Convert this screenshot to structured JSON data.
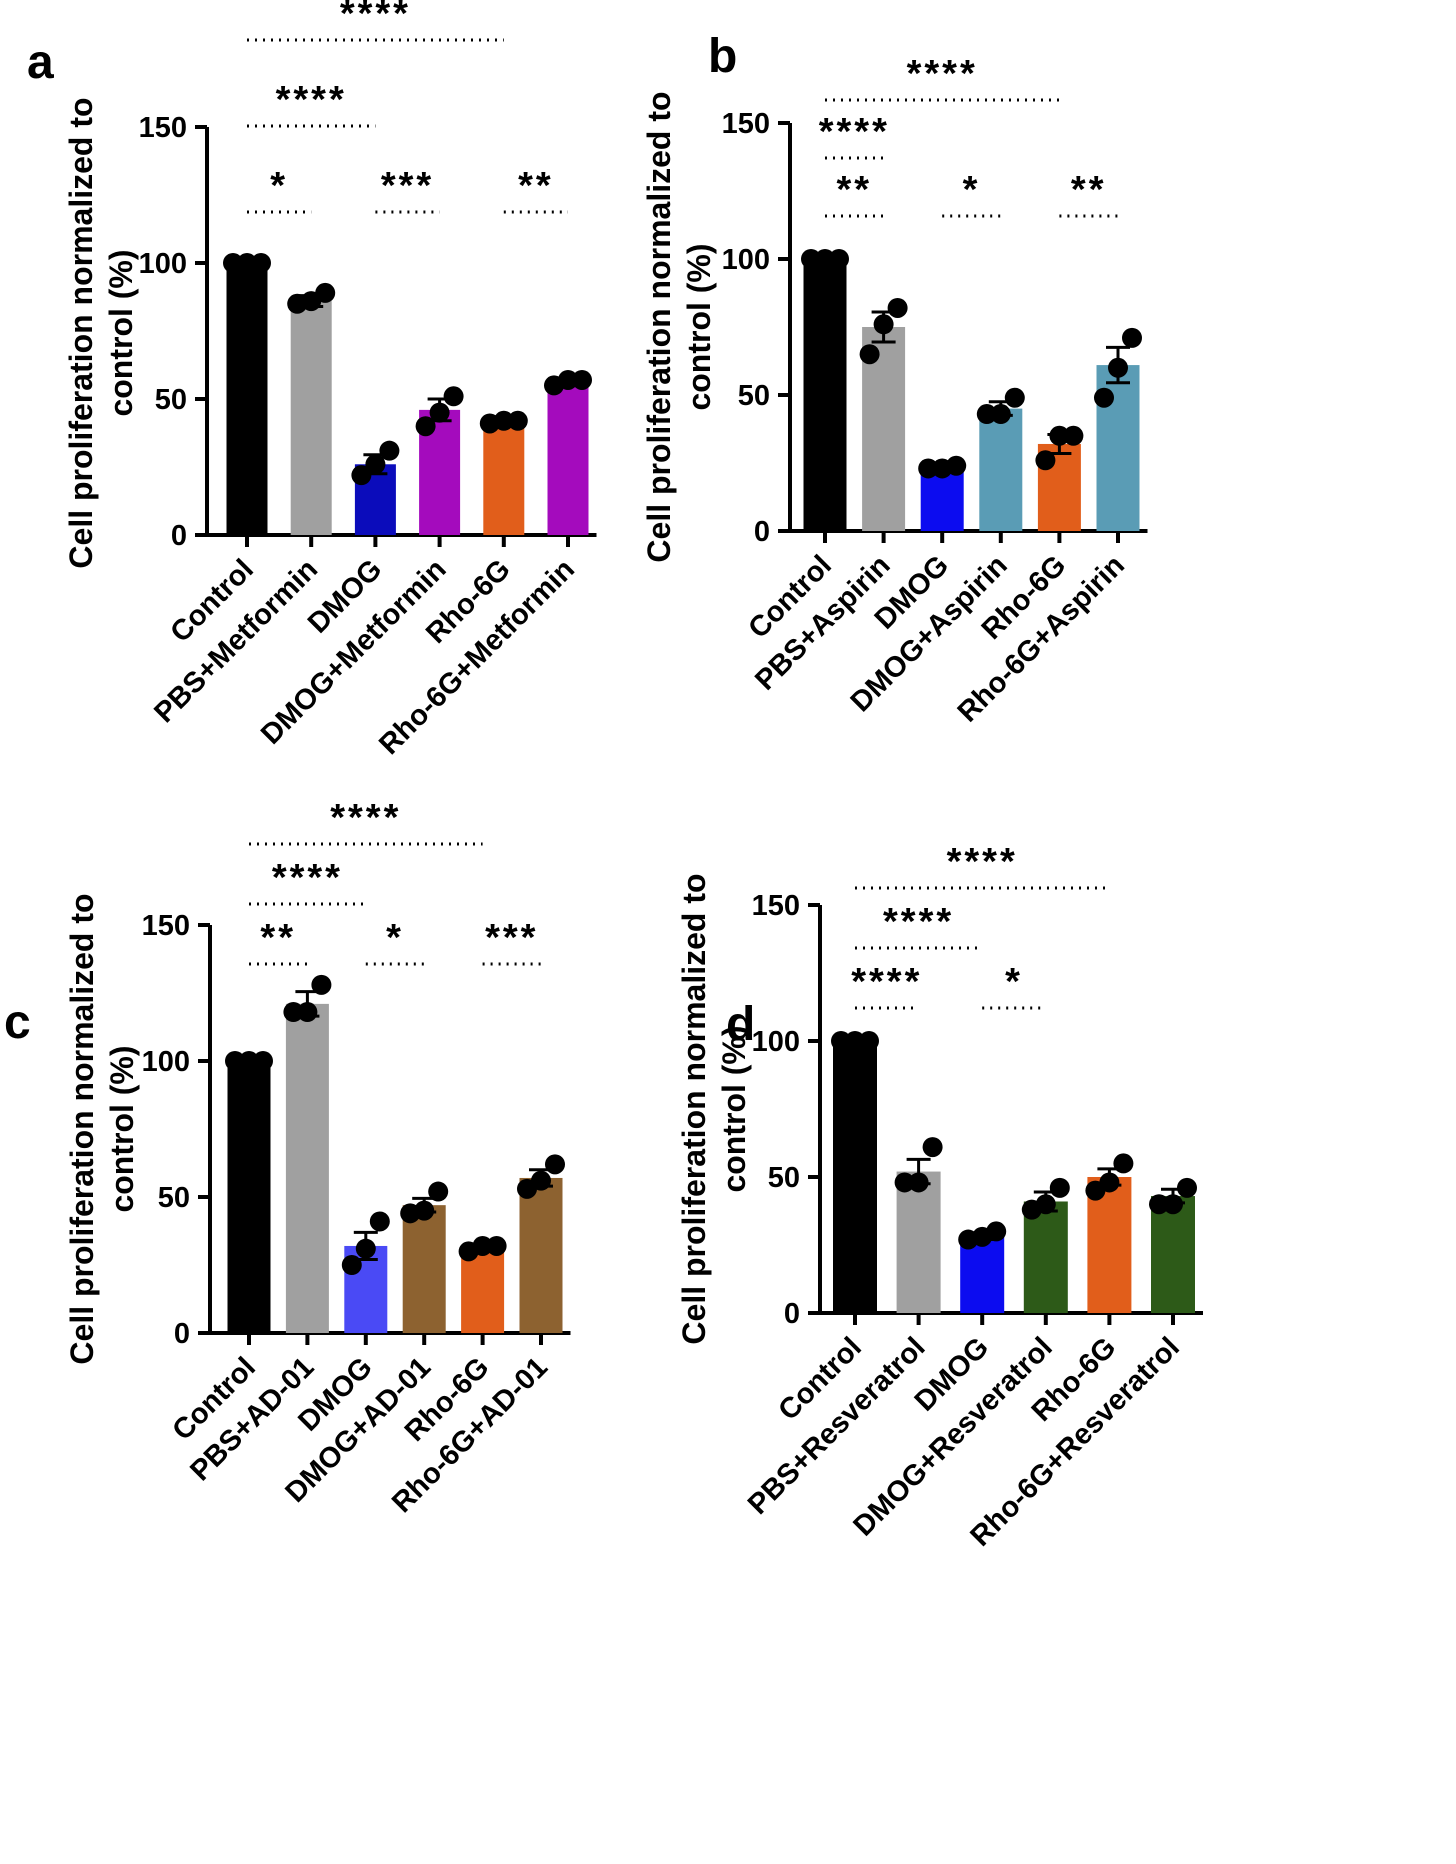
{
  "chart_data": [
    {
      "panel": "a",
      "type": "bar",
      "ylabel_line1": "Cell proliferation normalized to",
      "ylabel_line2": "control (%)",
      "ylim": [
        0,
        150
      ],
      "yticks": [
        "0",
        "50",
        "100",
        "150"
      ],
      "categories": [
        "Control",
        "PBS+Metformin",
        "DMOG",
        "DMOG+Metformin",
        "Rho-6G",
        "Rho-6G+Metformin"
      ],
      "values": [
        100,
        86,
        26,
        46,
        42,
        56
      ],
      "errors": [
        0,
        2,
        3.5,
        4,
        0.8,
        0.8
      ],
      "points": [
        [
          100,
          100,
          100
        ],
        [
          85,
          86,
          89
        ],
        [
          22,
          26,
          31
        ],
        [
          40,
          45,
          51
        ],
        [
          41,
          42,
          42
        ],
        [
          55,
          57,
          57
        ]
      ],
      "colors": [
        "#000000",
        "#a0a0a0",
        "#0b0cbb",
        "#a40bbd",
        "#e15e1b",
        "#a40bbd"
      ],
      "significance": [
        {
          "from": 0,
          "to": 4,
          "label": "****"
        },
        {
          "from": 0,
          "to": 2,
          "label": "****"
        },
        {
          "from": 0,
          "to": 1,
          "label": "*"
        },
        {
          "from": 2,
          "to": 3,
          "label": "***"
        },
        {
          "from": 4,
          "to": 5,
          "label": "**"
        }
      ]
    },
    {
      "panel": "b",
      "type": "bar",
      "ylabel_line1": "Cell proliferation normalized to",
      "ylabel_line2": "control (%)",
      "ylim": [
        0,
        150
      ],
      "yticks": [
        "0",
        "50",
        "100",
        "150"
      ],
      "categories": [
        "Control",
        "PBS+Aspirin",
        "DMOG",
        "DMOG+Aspirin",
        "Rho-6G",
        "Rho-6G+Aspirin"
      ],
      "values": [
        100,
        75,
        23,
        45,
        32,
        61
      ],
      "errors": [
        0,
        5.5,
        0.7,
        2.5,
        3.5,
        6.5
      ],
      "points": [
        [
          100,
          100,
          100
        ],
        [
          65,
          76,
          82
        ],
        [
          23,
          23,
          24
        ],
        [
          43,
          43,
          49
        ],
        [
          26,
          35,
          35
        ],
        [
          49,
          60,
          71
        ]
      ],
      "colors": [
        "#000000",
        "#a0a0a0",
        "#0c0cf0",
        "#5a9cb5",
        "#e15e1b",
        "#5a9cb5"
      ],
      "significance": [
        {
          "from": 0,
          "to": 4,
          "label": "****"
        },
        {
          "from": 0,
          "to": 1,
          "label": "****"
        },
        {
          "from": 0,
          "to": 1,
          "label": "**"
        },
        {
          "from": 2,
          "to": 3,
          "label": "*"
        },
        {
          "from": 4,
          "to": 5,
          "label": "**"
        }
      ]
    },
    {
      "panel": "c",
      "type": "bar",
      "ylabel_line1": "Cell proliferation normalized to",
      "ylabel_line2": "control (%)",
      "ylim": [
        0,
        150
      ],
      "yticks": [
        "0",
        "50",
        "100",
        "150"
      ],
      "categories": [
        "Control",
        "PBS+AD-01",
        "DMOG",
        "DMOG+AD-01",
        "Rho-6G",
        "Rho-6G+AD-01"
      ],
      "values": [
        100,
        121,
        32,
        47,
        31,
        57
      ],
      "errors": [
        0,
        4.5,
        5,
        2.5,
        1,
        3
      ],
      "points": [
        [
          100,
          100,
          100
        ],
        [
          118,
          118,
          128
        ],
        [
          25,
          31,
          41
        ],
        [
          44,
          45,
          52
        ],
        [
          30,
          32,
          32
        ],
        [
          53,
          56,
          62
        ]
      ],
      "colors": [
        "#000000",
        "#a0a0a0",
        "#4a4af5",
        "#8d6230",
        "#e15e1b",
        "#8d6230"
      ],
      "significance": [
        {
          "from": 0,
          "to": 4,
          "label": "****"
        },
        {
          "from": 0,
          "to": 2,
          "label": "****"
        },
        {
          "from": 0,
          "to": 1,
          "label": "**"
        },
        {
          "from": 2,
          "to": 3,
          "label": "*"
        },
        {
          "from": 4,
          "to": 5,
          "label": "***"
        }
      ]
    },
    {
      "panel": "d",
      "type": "bar",
      "ylabel_line1": "Cell proliferation normalized to",
      "ylabel_line2": "control (%)",
      "ylim": [
        0,
        150
      ],
      "yticks": [
        "0",
        "50",
        "100",
        "150"
      ],
      "categories": [
        "Control",
        "PBS+Resveratrol",
        "DMOG",
        "DMOG+Resveratrol",
        "Rho-6G",
        "Rho-6G+Resveratrol"
      ],
      "values": [
        100,
        52,
        28,
        41,
        50,
        43
      ],
      "errors": [
        0,
        4.5,
        1,
        3.5,
        3,
        2.5
      ],
      "points": [
        [
          100,
          100,
          100
        ],
        [
          48,
          48,
          61
        ],
        [
          27,
          28,
          30
        ],
        [
          38,
          40,
          46
        ],
        [
          45,
          48,
          55
        ],
        [
          40,
          40,
          46
        ]
      ],
      "colors": [
        "#000000",
        "#a0a0a0",
        "#0c0cf0",
        "#2d5a18",
        "#e15e1b",
        "#2d5a18"
      ],
      "significance": [
        {
          "from": 0,
          "to": 4,
          "label": "****"
        },
        {
          "from": 0,
          "to": 2,
          "label": "****"
        },
        {
          "from": 0,
          "to": 1,
          "label": "****"
        },
        {
          "from": 2,
          "to": 3,
          "label": "*"
        }
      ]
    }
  ]
}
